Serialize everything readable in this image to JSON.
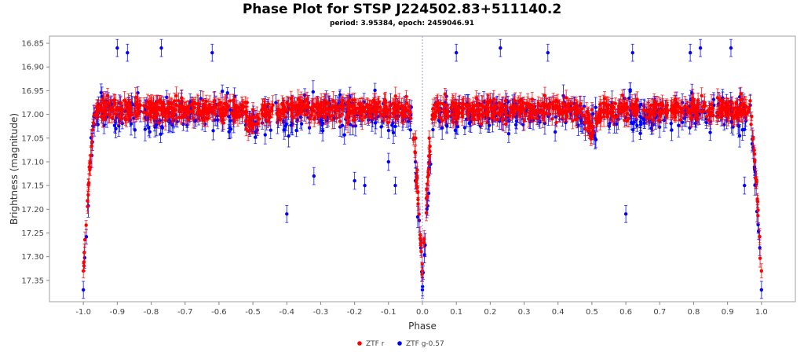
{
  "chart_data": {
    "type": "scatter",
    "title": "Phase Plot for STSP J224502.83+511140.2",
    "subtitle": "period: 3.95384, epoch: 2459046.91",
    "xlabel": "Phase",
    "ylabel": "Brightness (magnitude)",
    "xlim": [
      -1.1,
      1.1
    ],
    "ylim": [
      17.395,
      16.835
    ],
    "y_inverted": true,
    "x_ticks": [
      "-1.0",
      "-0.9",
      "-0.8",
      "-0.7",
      "-0.6",
      "-0.5",
      "-0.4",
      "-0.3",
      "-0.2",
      "-0.1",
      "0.0",
      "0.1",
      "0.2",
      "0.3",
      "0.4",
      "0.5",
      "0.6",
      "0.7",
      "0.8",
      "0.9",
      "1.0"
    ],
    "y_ticks": [
      "16.85",
      "16.90",
      "16.95",
      "17.00",
      "17.05",
      "17.10",
      "17.15",
      "17.20",
      "17.25",
      "17.30",
      "17.35"
    ],
    "vertical_marker_x": 0.0,
    "grid": false,
    "legend_position": "bottom-center",
    "series": [
      {
        "name": "ZTF r",
        "color": "#ff0000",
        "marker": "circle-with-error-bars",
        "baseline_magnitude": 16.99,
        "typical_error": 0.015,
        "eclipse_depth_magnitude": 17.33,
        "x": [
          -1.0,
          -0.98,
          -0.95,
          -0.9,
          -0.8,
          -0.7,
          -0.6,
          -0.52,
          -0.5,
          -0.4,
          -0.3,
          -0.2,
          -0.1,
          -0.05,
          -0.02,
          0.0,
          0.02,
          0.05,
          0.1,
          0.2,
          0.3,
          0.4,
          0.48,
          0.5,
          0.6,
          0.7,
          0.8,
          0.9,
          0.95,
          0.98,
          1.0
        ],
        "y": [
          17.33,
          17.1,
          16.99,
          16.99,
          16.98,
          16.99,
          16.99,
          17.03,
          16.99,
          16.99,
          16.98,
          16.97,
          16.99,
          16.99,
          17.05,
          17.33,
          17.05,
          16.99,
          16.99,
          16.97,
          16.99,
          16.99,
          17.03,
          16.99,
          16.99,
          16.98,
          16.97,
          16.99,
          16.99,
          17.1,
          17.33
        ]
      },
      {
        "name": "ZTF g-0.57",
        "color": "#0000ff",
        "marker": "circle-with-error-bars",
        "baseline_magnitude": 17.0,
        "typical_error": 0.018,
        "eclipse_depth_magnitude": 17.37,
        "x": [
          -1.0,
          -0.9,
          -0.87,
          -0.77,
          -0.62,
          -0.4,
          -0.32,
          -0.2,
          -0.17,
          -0.1,
          -0.08,
          0.0,
          0.1,
          0.23,
          0.37,
          0.5,
          0.6,
          0.62,
          0.79,
          0.82,
          0.91,
          0.95,
          1.0
        ],
        "y": [
          17.37,
          16.86,
          16.87,
          16.86,
          16.87,
          17.21,
          17.13,
          17.14,
          17.15,
          17.1,
          17.15,
          17.37,
          16.87,
          16.86,
          16.87,
          17.0,
          17.21,
          16.87,
          16.87,
          16.86,
          16.86,
          17.15,
          17.37
        ]
      }
    ]
  }
}
